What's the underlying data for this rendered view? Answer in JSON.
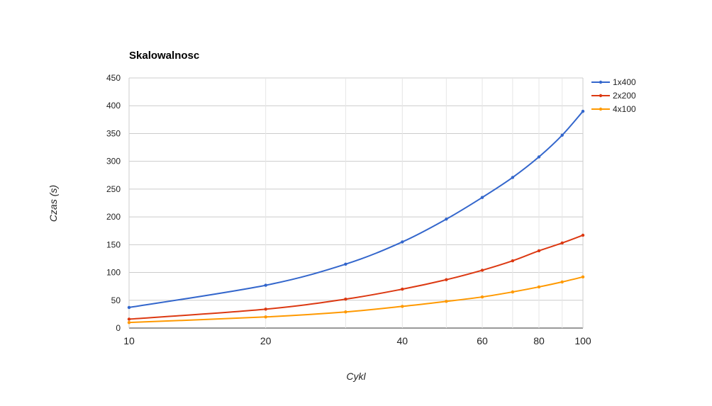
{
  "chart_data": {
    "type": "line",
    "title": "Skalowalnosc",
    "xlabel": "Cykl",
    "ylabel": "Czas (s)",
    "x_scale": "log",
    "xlim": [
      10,
      100
    ],
    "ylim": [
      0,
      450
    ],
    "x_ticks": [
      10,
      20,
      40,
      60,
      80,
      100
    ],
    "x_tick_labels": [
      "10",
      "20",
      "40",
      "60",
      "80",
      "100"
    ],
    "y_ticks": [
      0,
      50,
      100,
      150,
      200,
      250,
      300,
      350,
      400,
      450
    ],
    "y_tick_labels": [
      "0",
      "50",
      "100",
      "150",
      "200",
      "250",
      "300",
      "350",
      "400",
      "450"
    ],
    "grid": true,
    "legend_position": "right",
    "x": [
      10,
      20,
      30,
      40,
      50,
      60,
      70,
      80,
      90,
      100
    ],
    "series": [
      {
        "name": "1x400",
        "color": "#3366cc",
        "values": [
          37,
          77,
          115,
          155,
          196,
          235,
          271,
          308,
          347,
          390
        ]
      },
      {
        "name": "2x200",
        "color": "#dc3912",
        "values": [
          16,
          34,
          52,
          70,
          87,
          104,
          121,
          139,
          153,
          167
        ]
      },
      {
        "name": "4x100",
        "color": "#ff9900",
        "values": [
          10,
          20,
          29,
          39,
          48,
          56,
          65,
          74,
          83,
          92
        ]
      }
    ]
  }
}
